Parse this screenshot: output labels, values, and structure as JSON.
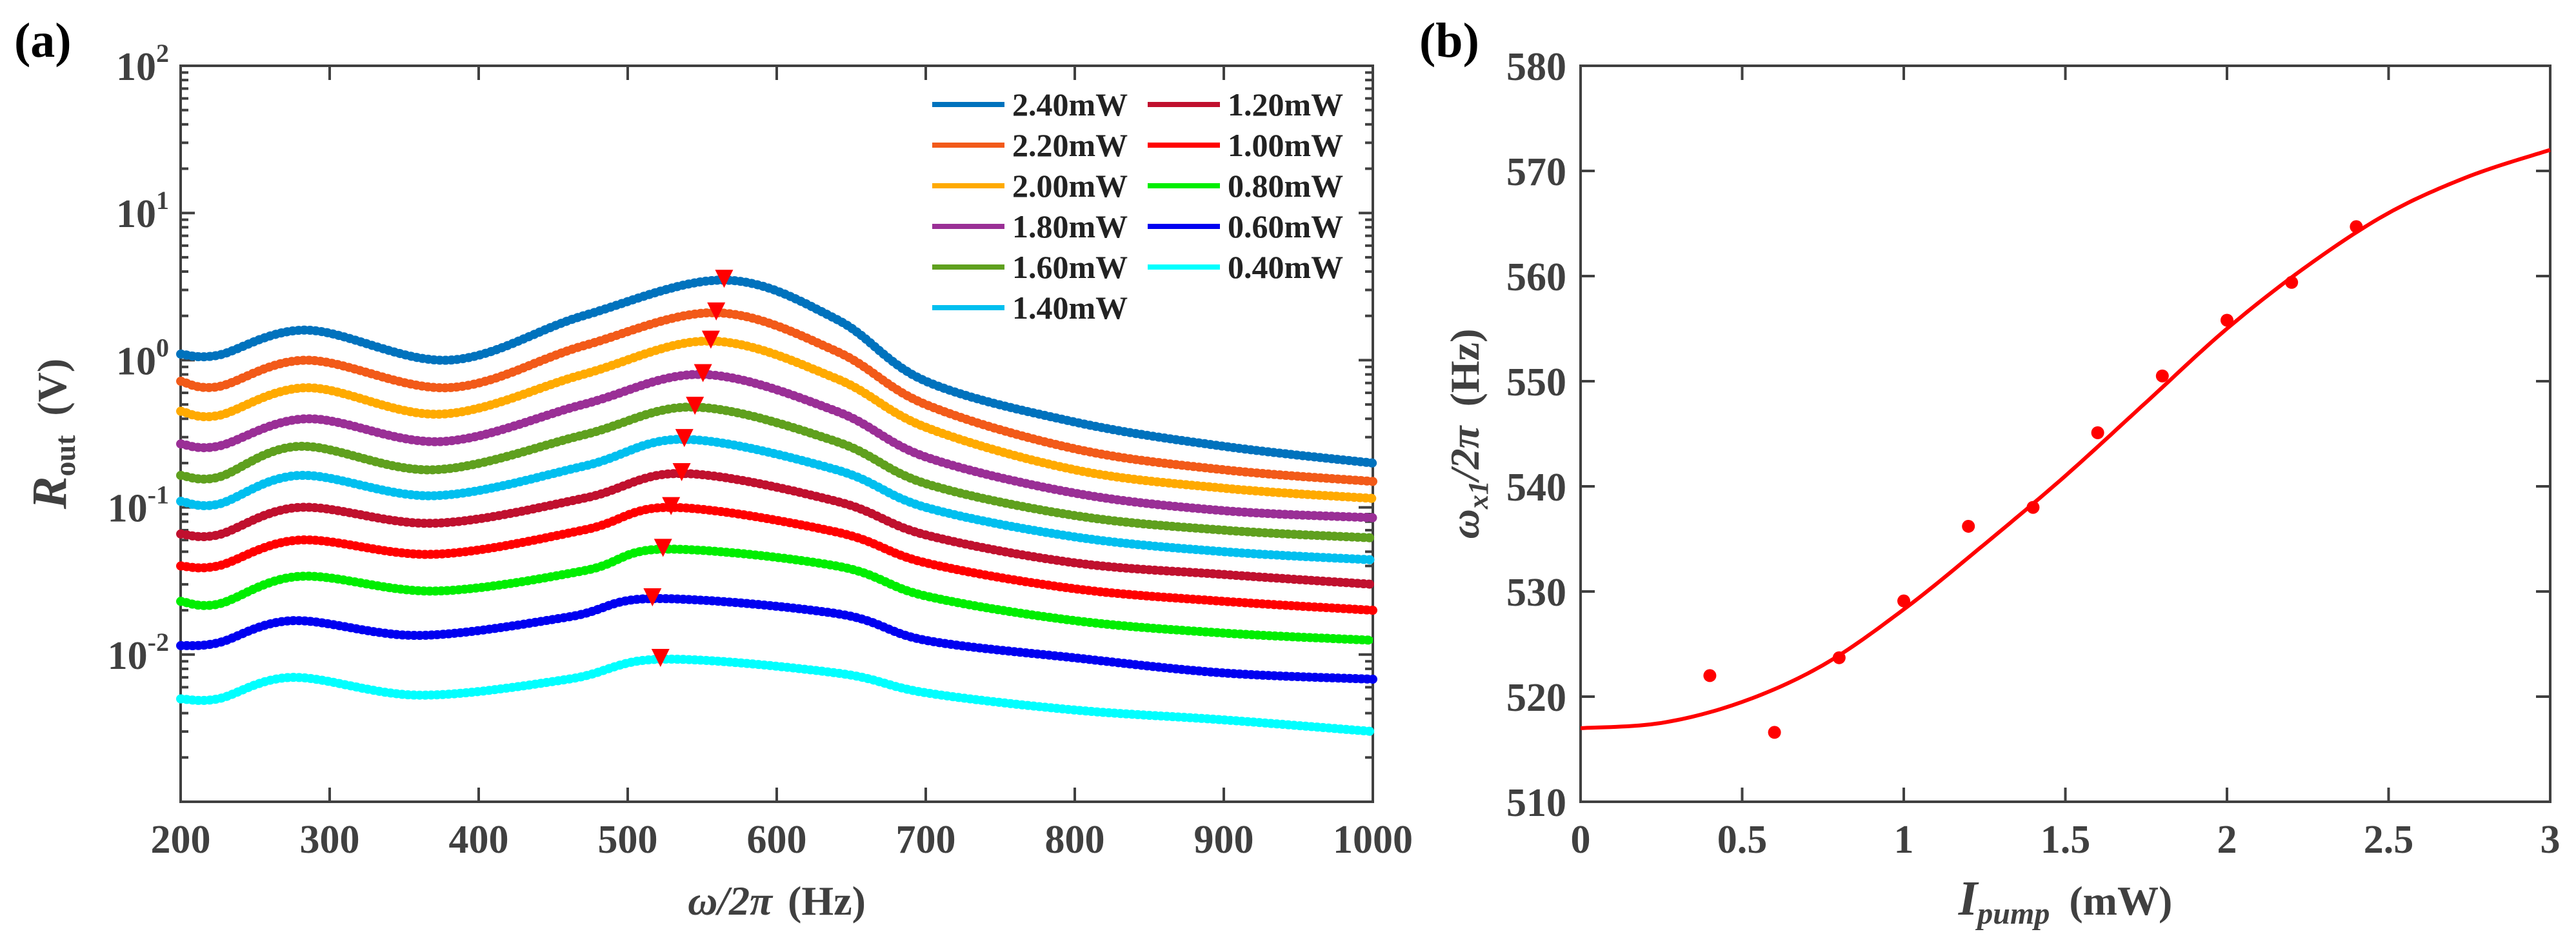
{
  "chart_data": [
    {
      "type": "line",
      "panel_label": "(a)",
      "xlabel": {
        "main": "ω/2π",
        "rest": "(Hz)"
      },
      "ylabel": {
        "main": "R",
        "sub": "out",
        "rest": "(V)"
      },
      "xlim": [
        200,
        1000
      ],
      "ylim": [
        0.001,
        100
      ],
      "yscale": "log",
      "xticks": [
        200,
        300,
        400,
        500,
        600,
        700,
        800,
        900,
        1000
      ],
      "xtick_labels": [
        "200",
        "300",
        "400",
        "500",
        "600",
        "700",
        "800",
        "900",
        "1000"
      ],
      "yticks": [
        0.01,
        0.1,
        1,
        10,
        100
      ],
      "ytick_labels": [
        {
          "base": "10",
          "exp": "-2"
        },
        {
          "base": "10",
          "exp": "-1"
        },
        {
          "base": "10",
          "exp": "0"
        },
        {
          "base": "10",
          "exp": "1"
        },
        {
          "base": "10",
          "exp": "2"
        }
      ],
      "legend_position": "top-right",
      "peak_marker_color": "#FF0000",
      "series": [
        {
          "name": "2.40mW",
          "color": "#0072BD",
          "peak": [
            564.7,
            3.5
          ],
          "points": [
            [
              200,
              1.1
            ],
            [
              225,
              1.08
            ],
            [
              285,
              1.6
            ],
            [
              380,
              1.0
            ],
            [
              470,
              2.0
            ],
            [
              564.7,
              3.5
            ],
            [
              640,
              1.9
            ],
            [
              700,
              0.72
            ],
            [
              800,
              0.38
            ],
            [
              900,
              0.26
            ],
            [
              1000,
              0.2
            ]
          ]
        },
        {
          "name": "2.20mW",
          "color": "#F25A19",
          "peak": [
            559.4,
            2.1
          ],
          "points": [
            [
              200,
              0.72
            ],
            [
              225,
              0.66
            ],
            [
              285,
              1.0
            ],
            [
              380,
              0.65
            ],
            [
              470,
              1.25
            ],
            [
              559.4,
              2.1
            ],
            [
              640,
              1.15
            ],
            [
              700,
              0.5
            ],
            [
              800,
              0.25
            ],
            [
              900,
              0.18
            ],
            [
              1000,
              0.15
            ]
          ]
        },
        {
          "name": "2.00mW",
          "color": "#FFAA00",
          "peak": [
            555.8,
            1.35
          ],
          "points": [
            [
              200,
              0.45
            ],
            [
              225,
              0.42
            ],
            [
              285,
              0.65
            ],
            [
              375,
              0.43
            ],
            [
              470,
              0.8
            ],
            [
              555.8,
              1.35
            ],
            [
              640,
              0.75
            ],
            [
              700,
              0.35
            ],
            [
              800,
              0.18
            ],
            [
              900,
              0.135
            ],
            [
              1000,
              0.115
            ]
          ]
        },
        {
          "name": "1.80mW",
          "color": "#9A2F96",
          "peak": [
            550.5,
            0.8
          ],
          "points": [
            [
              200,
              0.27
            ],
            [
              225,
              0.26
            ],
            [
              285,
              0.4
            ],
            [
              375,
              0.28
            ],
            [
              470,
              0.5
            ],
            [
              550.5,
              0.8
            ],
            [
              640,
              0.45
            ],
            [
              700,
              0.22
            ],
            [
              800,
              0.125
            ],
            [
              900,
              0.095
            ],
            [
              1000,
              0.085
            ]
          ]
        },
        {
          "name": "1.60mW",
          "color": "#5FA01E",
          "peak": [
            545.1,
            0.48
          ],
          "points": [
            [
              200,
              0.165
            ],
            [
              225,
              0.16
            ],
            [
              280,
              0.26
            ],
            [
              370,
              0.18
            ],
            [
              470,
              0.31
            ],
            [
              545.1,
              0.48
            ],
            [
              640,
              0.28
            ],
            [
              700,
              0.145
            ],
            [
              800,
              0.088
            ],
            [
              900,
              0.07
            ],
            [
              1000,
              0.062
            ]
          ]
        },
        {
          "name": "1.40mW",
          "color": "#00BFEF",
          "peak": [
            538.0,
            0.29
          ],
          "points": [
            [
              200,
              0.11
            ],
            [
              225,
              0.105
            ],
            [
              280,
              0.165
            ],
            [
              370,
              0.12
            ],
            [
              470,
              0.19
            ],
            [
              538,
              0.29
            ],
            [
              640,
              0.18
            ],
            [
              700,
              0.1
            ],
            [
              800,
              0.063
            ],
            [
              900,
              0.05
            ],
            [
              1000,
              0.044
            ]
          ]
        },
        {
          "name": "1.20mW",
          "color": "#C0102E",
          "peak": [
            536.2,
            0.17
          ],
          "points": [
            [
              200,
              0.066
            ],
            [
              225,
              0.065
            ],
            [
              280,
              0.1
            ],
            [
              370,
              0.078
            ],
            [
              470,
              0.115
            ],
            [
              536.2,
              0.17
            ],
            [
              640,
              0.11
            ],
            [
              700,
              0.065
            ],
            [
              800,
              0.042
            ],
            [
              900,
              0.035
            ],
            [
              1000,
              0.03
            ]
          ]
        },
        {
          "name": "1.00mW",
          "color": "#FF0000",
          "peak": [
            529.1,
            0.1
          ],
          "points": [
            [
              200,
              0.04
            ],
            [
              225,
              0.04
            ],
            [
              280,
              0.06
            ],
            [
              370,
              0.048
            ],
            [
              470,
              0.07
            ],
            [
              529.1,
              0.1
            ],
            [
              640,
              0.068
            ],
            [
              700,
              0.042
            ],
            [
              800,
              0.028
            ],
            [
              900,
              0.023
            ],
            [
              1000,
              0.02
            ]
          ]
        },
        {
          "name": "0.80mW",
          "color": "#00EE00",
          "peak": [
            523.7,
            0.052
          ],
          "points": [
            [
              200,
              0.023
            ],
            [
              225,
              0.022
            ],
            [
              280,
              0.034
            ],
            [
              370,
              0.027
            ],
            [
              470,
              0.037
            ],
            [
              523.7,
              0.052
            ],
            [
              640,
              0.04
            ],
            [
              700,
              0.025
            ],
            [
              800,
              0.017
            ],
            [
              900,
              0.014
            ],
            [
              1000,
              0.0125
            ]
          ]
        },
        {
          "name": "0.60mW",
          "color": "#0000F0",
          "peak": [
            516.6,
            0.024
          ],
          "points": [
            [
              200,
              0.0115
            ],
            [
              225,
              0.012
            ],
            [
              275,
              0.017
            ],
            [
              360,
              0.0135
            ],
            [
              460,
              0.018
            ],
            [
              516.6,
              0.024
            ],
            [
              640,
              0.019
            ],
            [
              700,
              0.0125
            ],
            [
              800,
              0.0095
            ],
            [
              900,
              0.0075
            ],
            [
              1000,
              0.0068
            ]
          ]
        },
        {
          "name": "0.40mW",
          "color": "#00FFFF",
          "peak": [
            522.0,
            0.0093
          ],
          "points": [
            [
              200,
              0.005
            ],
            [
              225,
              0.005
            ],
            [
              275,
              0.007
            ],
            [
              360,
              0.0053
            ],
            [
              460,
              0.0068
            ],
            [
              522,
              0.0093
            ],
            [
              640,
              0.0075
            ],
            [
              700,
              0.0055
            ],
            [
              800,
              0.0042
            ],
            [
              900,
              0.0036
            ],
            [
              1000,
              0.003
            ]
          ]
        }
      ]
    },
    {
      "type": "scatter",
      "panel_label": "(b)",
      "xlabel": {
        "main": "I",
        "sub": "pump",
        "rest": "(mW)"
      },
      "ylabel": {
        "main": "ω",
        "sub": "x1",
        "slash": "/2π",
        "rest": "(Hz)"
      },
      "xlim": [
        0,
        3
      ],
      "ylim": [
        510,
        580
      ],
      "xticks": [
        0,
        0.5,
        1,
        1.5,
        2,
        2.5,
        3
      ],
      "xtick_labels": [
        "0",
        "0.5",
        "1",
        "1.5",
        "2",
        "2.5",
        "3"
      ],
      "yticks": [
        510,
        520,
        530,
        540,
        550,
        560,
        570,
        580
      ],
      "ytick_labels": [
        "510",
        "520",
        "530",
        "540",
        "550",
        "560",
        "570",
        "580"
      ],
      "color": "#FF0000",
      "points": {
        "x": [
          0.4,
          0.6,
          0.8,
          1.0,
          1.2,
          1.4,
          1.6,
          1.8,
          2.0,
          2.2,
          2.4
        ],
        "y": [
          522.0,
          516.6,
          523.7,
          529.1,
          536.2,
          538.0,
          545.1,
          550.5,
          555.8,
          559.4,
          564.7
        ]
      },
      "fit": {
        "x": [
          0,
          0.25,
          0.5,
          0.75,
          1,
          1.25,
          1.5,
          1.75,
          2,
          2.25,
          2.5,
          2.75,
          3
        ],
        "y": [
          517,
          517.5,
          519.5,
          523,
          528.3,
          534.5,
          541,
          548,
          555,
          561,
          566,
          569.5,
          572
        ]
      }
    }
  ]
}
